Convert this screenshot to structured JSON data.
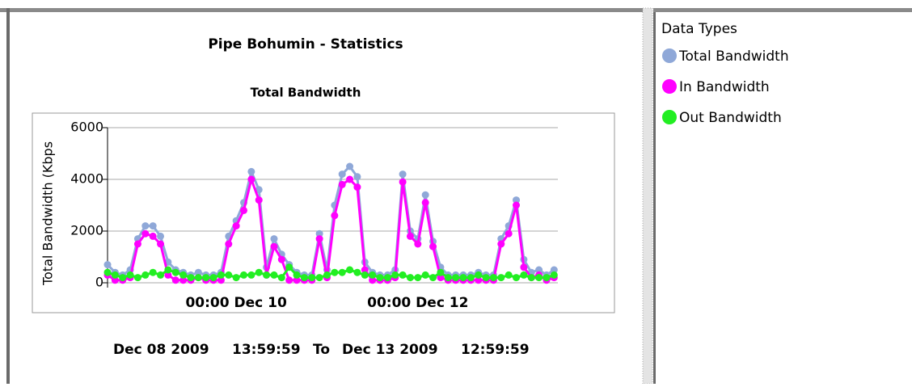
{
  "panel": {
    "title": "Data Types"
  },
  "footer": {
    "from_date": "Dec 08 2009",
    "from_time": "13:59:59",
    "to": "To",
    "to_date": "Dec 13 2009",
    "to_time": "12:59:59"
  },
  "chart_data": {
    "type": "line",
    "title": "Pipe Bohumin - Statistics",
    "subtitle": "Total Bandwidth",
    "y_label": "Total Bandwidth (Kbps",
    "x": [
      "2009-12-08T14:00",
      "2009-12-08T16:00",
      "2009-12-08T18:00",
      "2009-12-08T20:00",
      "2009-12-08T22:00",
      "2009-12-09T00:00",
      "2009-12-09T02:00",
      "2009-12-09T04:00",
      "2009-12-09T06:00",
      "2009-12-09T08:00",
      "2009-12-09T10:00",
      "2009-12-09T12:00",
      "2009-12-09T14:00",
      "2009-12-09T16:00",
      "2009-12-09T18:00",
      "2009-12-09T20:00",
      "2009-12-09T22:00",
      "2009-12-10T00:00",
      "2009-12-10T02:00",
      "2009-12-10T04:00",
      "2009-12-10T06:00",
      "2009-12-10T08:00",
      "2009-12-10T10:00",
      "2009-12-10T12:00",
      "2009-12-10T14:00",
      "2009-12-10T16:00",
      "2009-12-10T18:00",
      "2009-12-10T20:00",
      "2009-12-10T22:00",
      "2009-12-11T00:00",
      "2009-12-11T02:00",
      "2009-12-11T04:00",
      "2009-12-11T06:00",
      "2009-12-11T08:00",
      "2009-12-11T10:00",
      "2009-12-11T12:00",
      "2009-12-11T14:00",
      "2009-12-11T16:00",
      "2009-12-11T18:00",
      "2009-12-11T20:00",
      "2009-12-11T22:00",
      "2009-12-12T00:00",
      "2009-12-12T02:00",
      "2009-12-12T04:00",
      "2009-12-12T06:00",
      "2009-12-12T08:00",
      "2009-12-12T10:00",
      "2009-12-12T12:00",
      "2009-12-12T14:00",
      "2009-12-12T16:00",
      "2009-12-12T18:00",
      "2009-12-12T20:00",
      "2009-12-12T22:00",
      "2009-12-13T00:00",
      "2009-12-13T02:00",
      "2009-12-13T04:00",
      "2009-12-13T06:00",
      "2009-12-13T08:00",
      "2009-12-13T10:00",
      "2009-12-13T12:00"
    ],
    "series": [
      {
        "name": "Total Bandwidth",
        "color": "#8fa8d8",
        "values": [
          700,
          400,
          300,
          500,
          1700,
          2200,
          2200,
          1800,
          800,
          500,
          400,
          300,
          400,
          300,
          300,
          400,
          1800,
          2400,
          3100,
          4300,
          3600,
          600,
          1700,
          1100,
          700,
          400,
          300,
          300,
          1900,
          500,
          3000,
          4200,
          4500,
          4100,
          800,
          400,
          300,
          300,
          500,
          4200,
          2000,
          1700,
          3400,
          1600,
          600,
          300,
          300,
          300,
          300,
          400,
          300,
          300,
          1700,
          2200,
          3200,
          900,
          400,
          500,
          300,
          500
        ]
      },
      {
        "name": "In Bandwidth",
        "color": "#ff00ff",
        "values": [
          300,
          100,
          100,
          200,
          1500,
          1900,
          1800,
          1500,
          300,
          100,
          100,
          100,
          200,
          100,
          100,
          100,
          1500,
          2200,
          2800,
          4000,
          3200,
          300,
          1400,
          900,
          100,
          100,
          100,
          100,
          1700,
          200,
          2600,
          3800,
          4000,
          3700,
          500,
          100,
          100,
          100,
          200,
          3900,
          1800,
          1500,
          3100,
          1400,
          200,
          100,
          100,
          100,
          100,
          100,
          100,
          100,
          1500,
          1900,
          3000,
          600,
          200,
          300,
          100,
          200
        ]
      },
      {
        "name": "Out Bandwidth",
        "color": "#22ee22",
        "values": [
          400,
          300,
          200,
          300,
          200,
          300,
          400,
          300,
          500,
          400,
          300,
          200,
          200,
          200,
          200,
          300,
          300,
          200,
          300,
          300,
          400,
          300,
          300,
          200,
          600,
          300,
          200,
          200,
          200,
          300,
          400,
          400,
          500,
          400,
          300,
          300,
          200,
          200,
          300,
          300,
          200,
          200,
          300,
          200,
          400,
          200,
          200,
          200,
          200,
          300,
          200,
          200,
          200,
          300,
          200,
          300,
          200,
          200,
          200,
          300
        ]
      }
    ],
    "xlim": [
      "2009-12-08T13:59:59",
      "2009-12-13T12:59:59"
    ],
    "xticks": [
      {
        "value": "2009-12-10T00:00",
        "label": "00:00 Dec 10"
      },
      {
        "value": "2009-12-12T00:00",
        "label": "00:00 Dec 12"
      }
    ],
    "ylim": [
      0,
      6000
    ],
    "yticks": [
      0,
      2000,
      4000,
      6000
    ],
    "grid": true
  }
}
